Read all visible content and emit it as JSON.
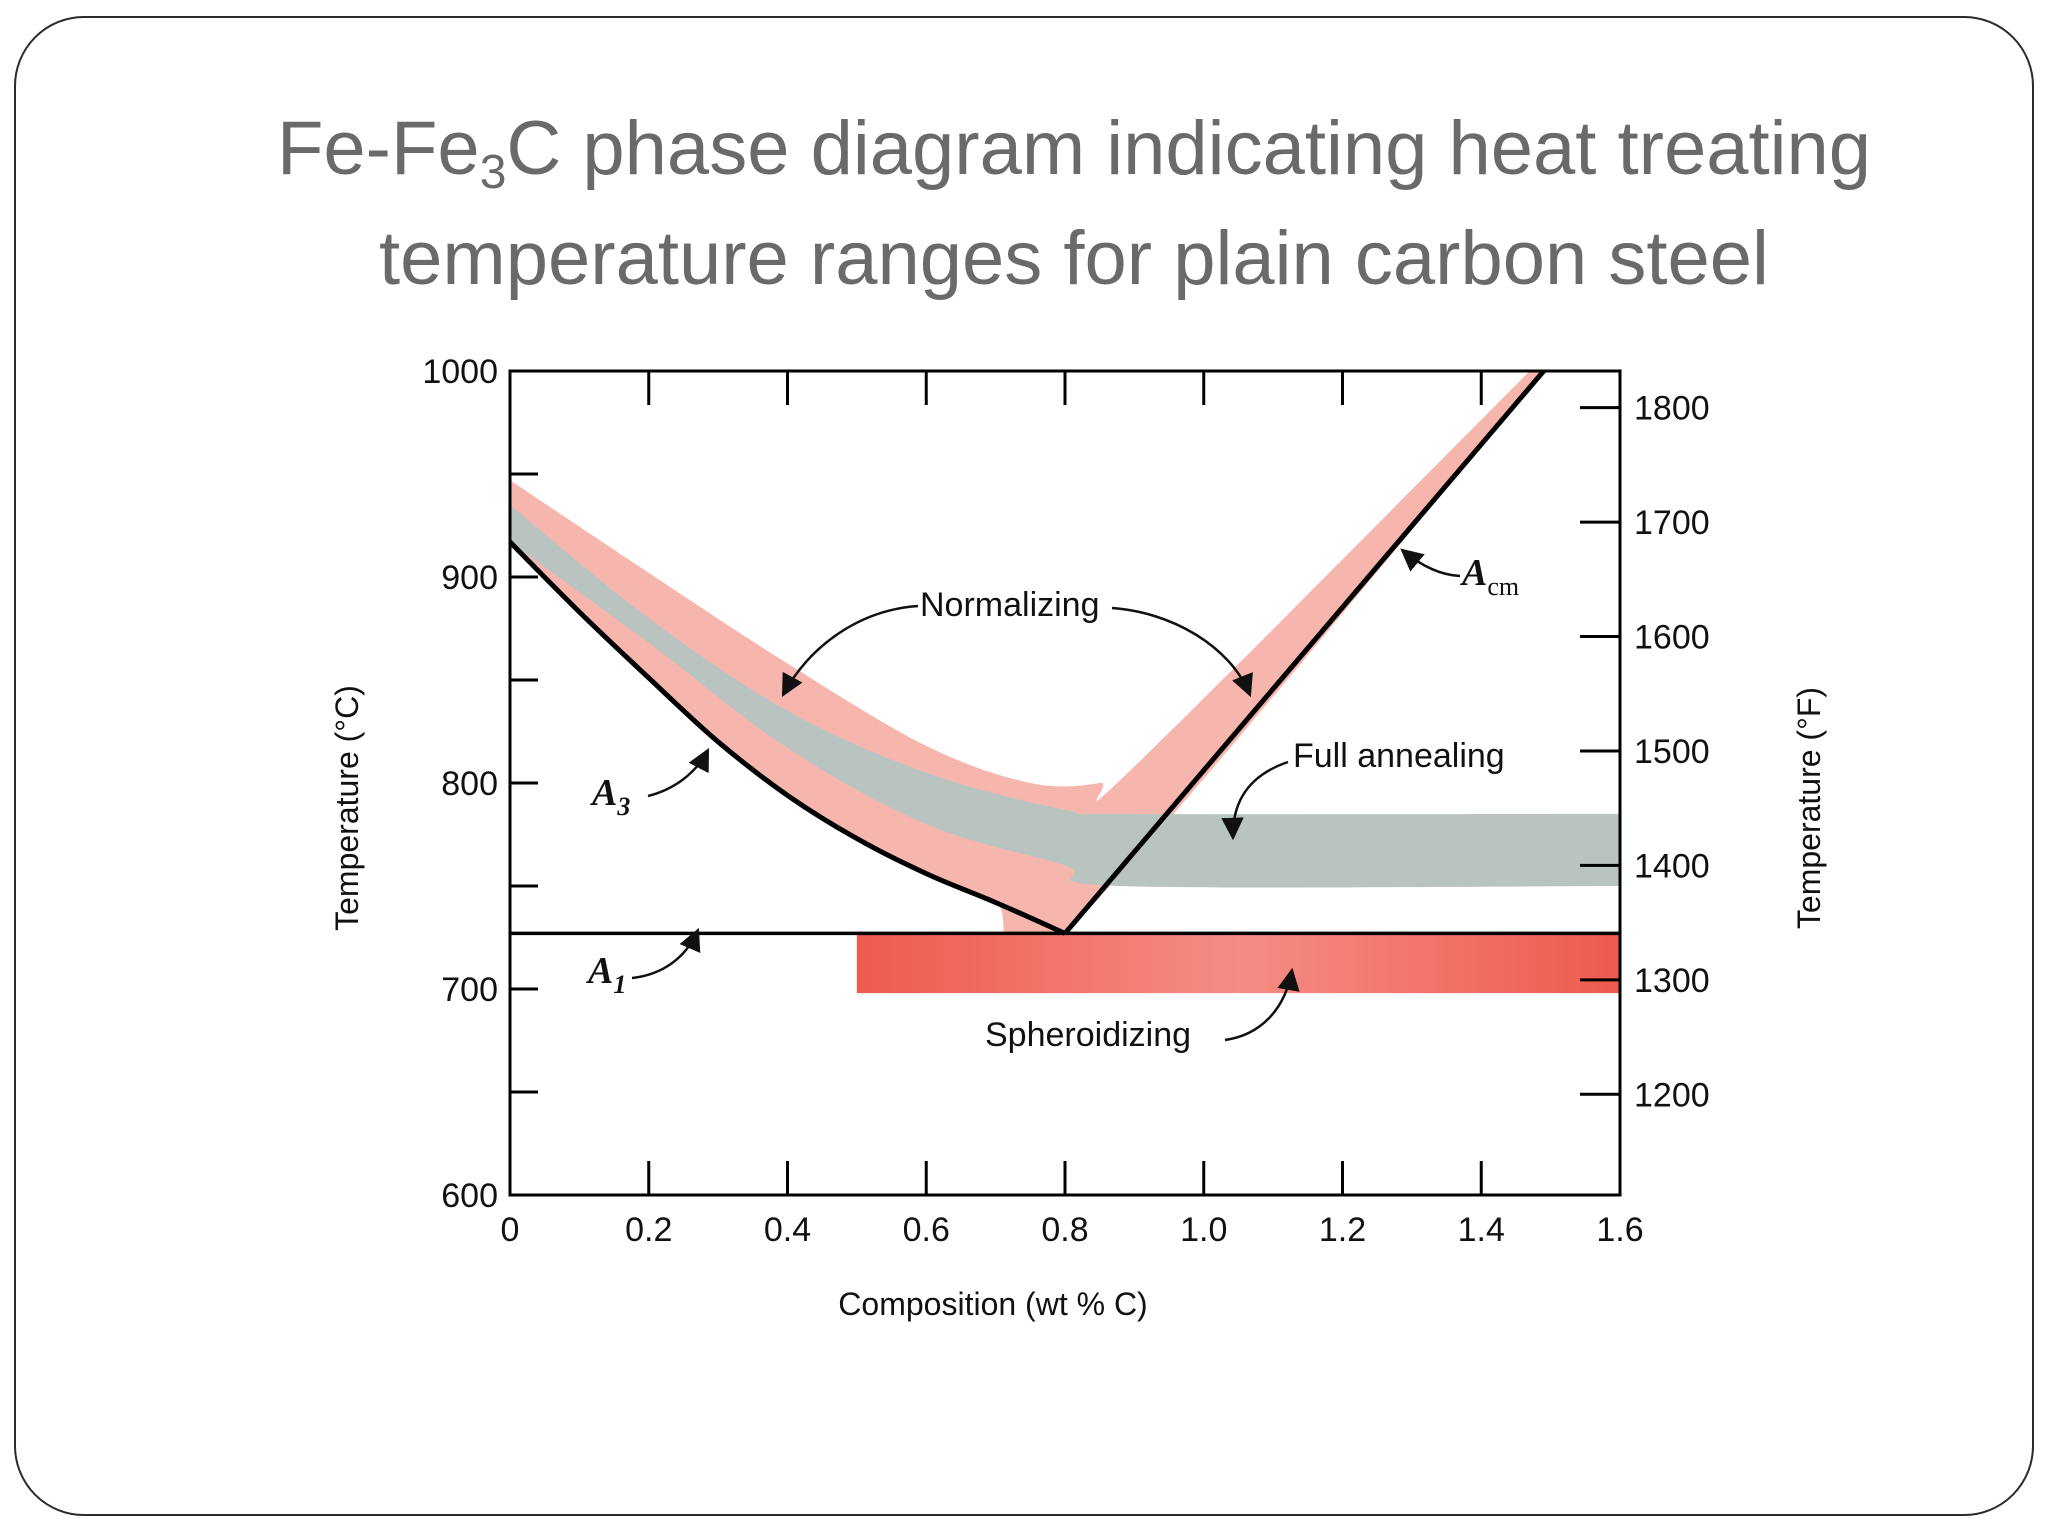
{
  "title": {
    "part1": "Fe-Fe",
    "sub": "3",
    "part2": "C phase diagram indicating heat treating",
    "line2": "temperature ranges for plain carbon steel"
  },
  "colors": {
    "normalizing": "#f7b6ad",
    "full_annealing": "#b9c4c0",
    "spheroidizing": "#ee5a4f",
    "title_text": "#6a6a6a"
  },
  "chart_data": {
    "type": "area",
    "xlabel": "Composition (wt % C)",
    "ylabel": "Temperature (°C)",
    "y2label": "Temperature (°F)",
    "xlim": [
      0,
      1.6
    ],
    "ylim": [
      600,
      1000
    ],
    "y2lim_F": [
      1112,
      1832
    ],
    "x_ticks": [
      "0",
      "0.2",
      "0.4",
      "0.6",
      "0.8",
      "1.0",
      "1.2",
      "1.4",
      "1.6"
    ],
    "y_ticks": [
      "600",
      "700",
      "800",
      "900",
      "1000"
    ],
    "y2_ticks": [
      "1200",
      "1300",
      "1400",
      "1500",
      "1600",
      "1700",
      "1800"
    ],
    "grid": false,
    "lines": [
      {
        "name": "A3",
        "label_main": "A",
        "label_sub": "3",
        "x": [
          0,
          0.1,
          0.2,
          0.3,
          0.4,
          0.5,
          0.6,
          0.7,
          0.8
        ],
        "y": [
          917,
          883,
          851,
          820,
          794,
          773,
          756,
          742,
          727
        ]
      },
      {
        "name": "Acm",
        "label_main": "A",
        "label_sub": "cm",
        "x": [
          0.8,
          1.49
        ],
        "y": [
          727,
          1000
        ]
      },
      {
        "name": "A1",
        "label_main": "A",
        "label_sub": "1",
        "x": [
          0,
          1.6
        ],
        "y": [
          727,
          727
        ]
      }
    ],
    "regions": [
      {
        "name": "Normalizing",
        "upper": {
          "x": [
            0,
            0.2,
            0.4,
            0.6,
            0.75,
            0.85,
            0.9,
            1.47
          ],
          "y": [
            947,
            902,
            858,
            818,
            800,
            800,
            808,
            1000
          ]
        },
        "lower": {
          "x": [
            0,
            0.1,
            0.2,
            0.3,
            0.4,
            0.5,
            0.6,
            0.7,
            0.8,
            1.49
          ],
          "y": [
            917,
            883,
            851,
            820,
            794,
            773,
            756,
            742,
            727,
            1000
          ]
        }
      },
      {
        "name": "Full annealing",
        "upper": {
          "x": [
            0,
            0.2,
            0.4,
            0.6,
            0.8,
            0.9,
            1.6
          ],
          "y": [
            935,
            880,
            835,
            805,
            787,
            785,
            785
          ]
        },
        "lower": {
          "x": [
            0,
            0.2,
            0.4,
            0.6,
            0.8,
            0.88,
            1.6
          ],
          "y": [
            917,
            868,
            817,
            780,
            760,
            750,
            750
          ]
        }
      },
      {
        "name": "Spheroidizing",
        "x": [
          0.5,
          1.6
        ],
        "y": [
          698,
          727
        ]
      }
    ],
    "annotations": [
      "Normalizing",
      "Full annealing",
      "Spheroidizing"
    ]
  }
}
